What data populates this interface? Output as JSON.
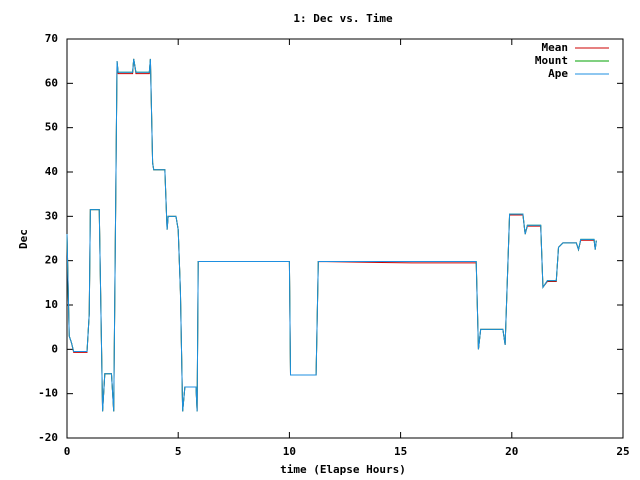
{
  "chart_data": {
    "type": "line",
    "title": "1: Dec vs. Time",
    "xlabel": "time (Elapse Hours)",
    "ylabel": "Dec",
    "x": [
      0,
      0.1,
      0.2,
      0.3,
      0.9,
      1.0,
      1.05,
      1.45,
      1.6,
      1.7,
      2.0,
      2.1,
      2.25,
      2.3,
      2.95,
      3.0,
      3.1,
      3.7,
      3.75,
      3.85,
      3.9,
      4.4,
      4.5,
      4.55,
      4.9,
      5.0,
      5.1,
      5.2,
      5.3,
      5.8,
      5.85,
      5.9,
      10.0,
      10.05,
      11.2,
      11.3,
      15.5,
      18.4,
      18.5,
      18.6,
      19.6,
      19.7,
      19.9,
      20.5,
      20.6,
      20.7,
      21.3,
      21.4,
      21.6,
      22.0,
      22.1,
      22.3,
      22.9,
      23.0,
      23.1,
      23.7,
      23.75,
      23.8
    ],
    "series": [
      {
        "name": "Mean",
        "color": "#cc0000",
        "values": [
          26,
          3,
          1.5,
          -0.7,
          -0.7,
          8,
          31.5,
          31.5,
          -14,
          -5.5,
          -5.5,
          -14,
          65,
          62.2,
          62.2,
          65.5,
          62.2,
          62.2,
          65.5,
          42,
          40.5,
          40.5,
          27,
          30,
          30,
          27,
          13,
          -14,
          -8.5,
          -8.5,
          -14,
          19.8,
          19.8,
          -5.8,
          -5.8,
          19.8,
          19.5,
          19.5,
          0,
          4.5,
          4.5,
          1,
          30.3,
          30.3,
          26,
          27.8,
          27.8,
          14,
          15.3,
          15.3,
          23,
          24,
          24,
          22.5,
          24.6,
          24.6,
          22.5,
          24.5
        ]
      },
      {
        "name": "Mount",
        "color": "#00a000",
        "values": [
          26,
          3,
          1.5,
          -0.5,
          -0.5,
          8,
          31.5,
          31.5,
          -14,
          -5.5,
          -5.5,
          -14,
          65,
          62.5,
          62.5,
          65.5,
          62.5,
          62.5,
          65.5,
          42,
          40.5,
          40.5,
          27,
          30,
          30,
          27,
          13,
          -14,
          -8.5,
          -8.5,
          -14,
          19.8,
          19.8,
          -5.8,
          -5.8,
          19.8,
          19.8,
          19.8,
          0,
          4.5,
          4.5,
          1,
          30.5,
          30.5,
          26,
          28,
          28,
          14,
          15.5,
          15.5,
          23,
          24,
          24,
          22.5,
          24.8,
          24.8,
          22.5,
          24.5
        ]
      },
      {
        "name": "Ape",
        "color": "#1e8fe0",
        "values": [
          26,
          3,
          1.5,
          -0.5,
          -0.5,
          8,
          31.5,
          31.5,
          -14,
          -5.5,
          -5.5,
          -14,
          65,
          62.5,
          62.5,
          65.5,
          62.5,
          62.5,
          65.5,
          42,
          40.5,
          40.5,
          27,
          30,
          30,
          27,
          13,
          -14,
          -8.5,
          -8.5,
          -14,
          19.8,
          19.8,
          -5.8,
          -5.8,
          19.8,
          19.8,
          19.8,
          0,
          4.5,
          4.5,
          1,
          30.5,
          30.5,
          26,
          28,
          28,
          14,
          15.5,
          15.5,
          23,
          24,
          24,
          22.5,
          24.8,
          24.8,
          22.5,
          24.5
        ]
      }
    ],
    "xlim": [
      0,
      25
    ],
    "xticks": [
      0,
      5,
      10,
      15,
      20,
      25
    ],
    "ylim": [
      -20,
      70
    ],
    "yticks": [
      -20,
      -10,
      0,
      10,
      20,
      30,
      40,
      50,
      60,
      70
    ],
    "legend": "top-right"
  }
}
